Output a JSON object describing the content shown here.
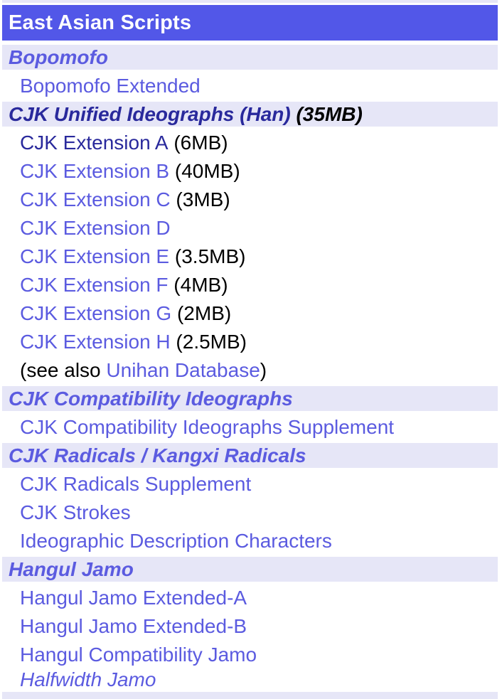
{
  "palette": {
    "header_background": "#5257e8",
    "header_text": "#ffffff",
    "section_row_background": "#e6e6f7",
    "link_color": "#5b5be0",
    "visited_link_color": "#29299c",
    "plain_text_color": "#000000"
  },
  "table": {
    "header": "East Asian Scripts",
    "rows": [
      {
        "type": "section",
        "text": "Bopomofo"
      },
      {
        "type": "link",
        "text": "Bopomofo Extended"
      },
      {
        "type": "section",
        "text": "CJK Unified Ideographs (Han)",
        "suffix": "(35MB)",
        "visited": true
      },
      {
        "type": "link",
        "text": "CJK Extension A",
        "suffix": "(6MB)",
        "visited": true
      },
      {
        "type": "link",
        "text": "CJK Extension B",
        "suffix": "(40MB)"
      },
      {
        "type": "link",
        "text": "CJK Extension C",
        "suffix": "(3MB)"
      },
      {
        "type": "link",
        "text": "CJK Extension D"
      },
      {
        "type": "link",
        "text": "CJK Extension E",
        "suffix": "(3.5MB)"
      },
      {
        "type": "link",
        "text": "CJK Extension F",
        "suffix": "(4MB)"
      },
      {
        "type": "link",
        "text": "CJK Extension G",
        "suffix": "(2MB)"
      },
      {
        "type": "link",
        "text": "CJK Extension H",
        "suffix": "(2.5MB)"
      },
      {
        "type": "note",
        "prefix": "(see also ",
        "link_text": "Unihan Database",
        "suffix": ")"
      },
      {
        "type": "section",
        "text": "CJK Compatibility Ideographs"
      },
      {
        "type": "link",
        "text": "CJK Compatibility Ideographs Supplement"
      },
      {
        "type": "section",
        "text": "CJK Radicals / Kangxi Radicals"
      },
      {
        "type": "link",
        "text": "CJK Radicals Supplement"
      },
      {
        "type": "link",
        "text": "CJK Strokes"
      },
      {
        "type": "link",
        "text": "Ideographic Description Characters"
      },
      {
        "type": "section",
        "text": "Hangul Jamo"
      },
      {
        "type": "link",
        "text": "Hangul Jamo Extended-A"
      },
      {
        "type": "link",
        "text": "Hangul Jamo Extended-B"
      },
      {
        "type": "link",
        "text": "Hangul Compatibility Jamo"
      },
      {
        "type": "link",
        "text": "Halfwidth Jamo",
        "italic": true
      }
    ]
  }
}
